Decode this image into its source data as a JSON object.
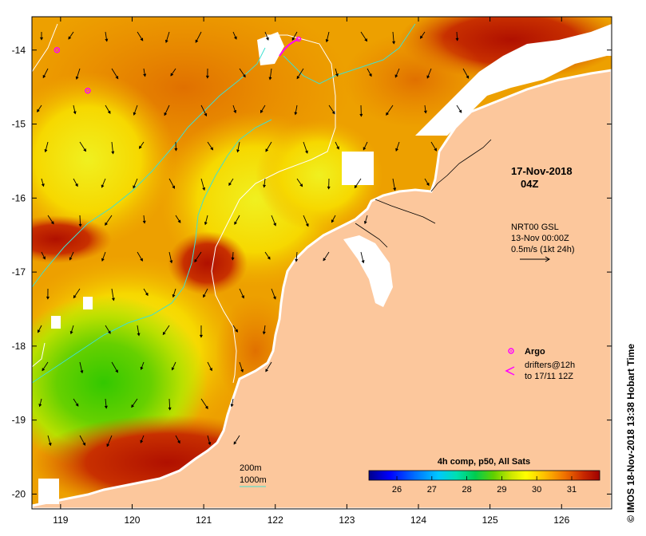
{
  "map": {
    "lon_ticks": [
      "119",
      "120",
      "121",
      "122",
      "123",
      "124",
      "125",
      "126"
    ],
    "lat_ticks": [
      "-14",
      "-15",
      "-16",
      "-17",
      "-18",
      "-19",
      "-20"
    ],
    "lon_range": [
      118.6,
      126.7
    ],
    "lat_range": [
      -20.2,
      -13.55
    ]
  },
  "labels": {
    "date": "17-Nov-2018",
    "hour": "04Z",
    "nrt_line1": "NRT00 GSL",
    "nrt_line2": "13-Nov 00:00Z",
    "nrt_line3": "0.5m/s (1kt 24h)",
    "argo": "Argo",
    "drifters_line1": "drifters@12h",
    "drifters_line2": "to 17/11 12Z",
    "isobath_200": "200m",
    "isobath_1000": "1000m",
    "colorbar_title": "4h comp, p50, All Sats",
    "side_credit": "© IMOS 18-Nov-2018 13:38 Hobart Time"
  },
  "colorbar": {
    "ticks": [
      "26",
      "27",
      "28",
      "29",
      "30",
      "31"
    ],
    "colors": [
      "#00008b",
      "#0000ff",
      "#0066ff",
      "#00bfff",
      "#00e5c0",
      "#00d060",
      "#44c800",
      "#b0e000",
      "#ffff00",
      "#ffc000",
      "#f08000",
      "#d04000",
      "#a00000"
    ]
  },
  "argo_floats": [
    {
      "lon": 118.95,
      "lat": -14.0
    },
    {
      "lon": 119.38,
      "lat": -14.55
    }
  ],
  "colors": {
    "land": "#fcc79c",
    "argo_marker": "#ff00ff",
    "isobath_200": "#ffffff",
    "isobath_1000": "#40e0d0",
    "arrow": "#000000"
  }
}
